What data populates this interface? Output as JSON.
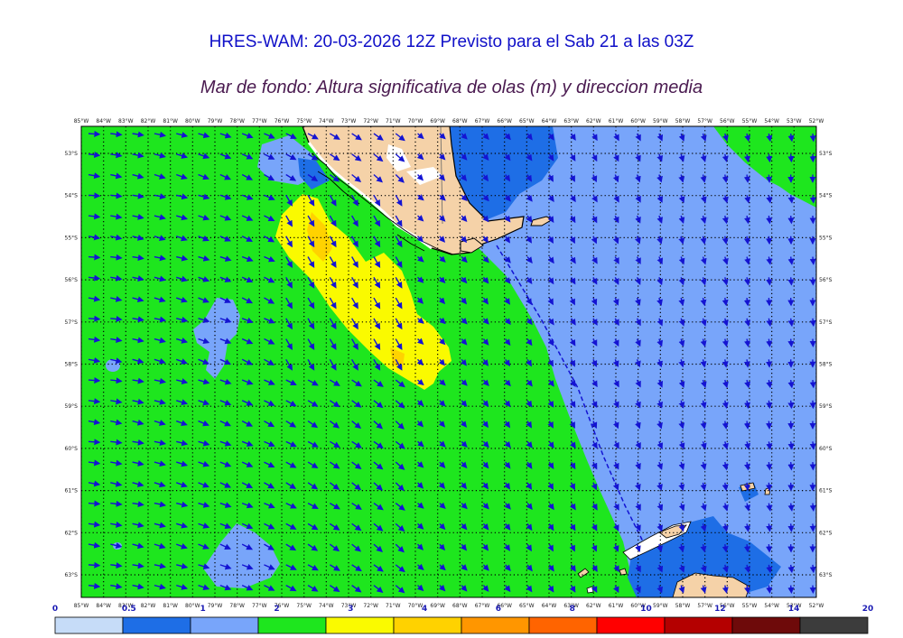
{
  "title": "HRES-WAM: 20-03-2026 12Z Previsto para el Sab 21 a las 03Z",
  "subtitle": "Mar de fondo: Altura significativa de olas (m) y direccion media",
  "map": {
    "lon_ticks": [
      "85°W",
      "84°W",
      "83°W",
      "82°W",
      "81°W",
      "80°W",
      "79°W",
      "78°W",
      "77°W",
      "76°W",
      "75°W",
      "74°W",
      "73°W",
      "72°W",
      "71°W",
      "70°W",
      "69°W",
      "68°W",
      "67°W",
      "66°W",
      "65°W",
      "64°W",
      "63°W",
      "62°W",
      "61°W",
      "60°W",
      "59°W",
      "58°W",
      "57°W",
      "56°W",
      "55°W",
      "54°W",
      "53°W",
      "52°W"
    ],
    "lat_ticks": [
      "53°S",
      "54°S",
      "55°S",
      "56°S",
      "57°S",
      "58°S",
      "59°S",
      "60°S",
      "61°S",
      "62°S",
      "63°S"
    ],
    "arrow_color": "#1414d2",
    "land_color": "#f5d2a8",
    "boundary_line_color": "#1414d2"
  },
  "colorbar": {
    "labels": [
      "0",
      "0.5",
      "1",
      "2",
      "3",
      "4",
      "6",
      "8",
      "10",
      "12",
      "14",
      "20"
    ],
    "colors": [
      "#c6dcf8",
      "#1e6ee6",
      "#78a5fa",
      "#1ee61e",
      "#fafa00",
      "#ffd200",
      "#ff9600",
      "#ff6400",
      "#ff0000",
      "#b40000",
      "#6e0a0a",
      "#3c3c3c"
    ]
  }
}
